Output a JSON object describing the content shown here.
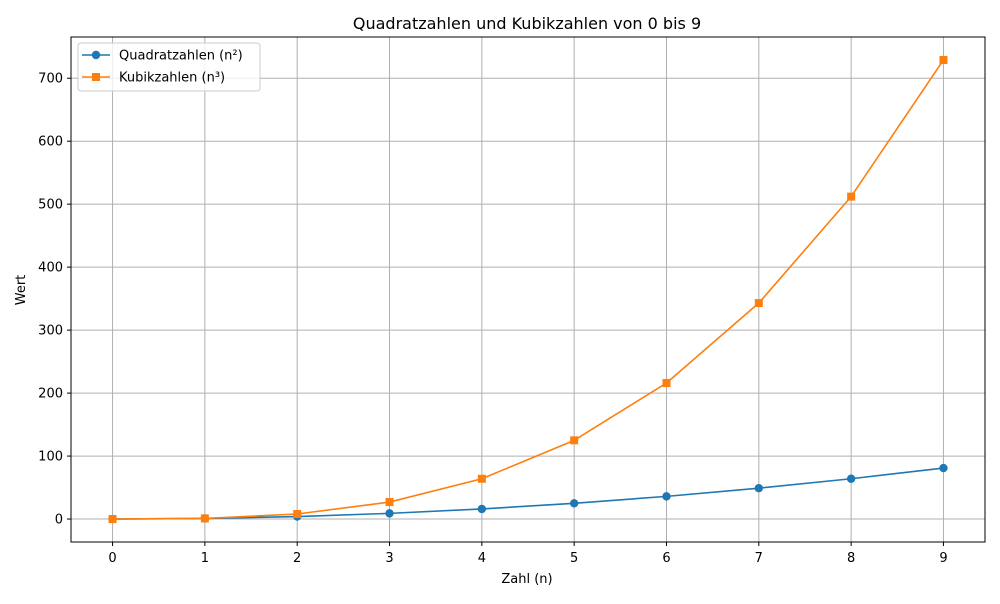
{
  "chart_data": {
    "type": "line",
    "title": "Quadratzahlen und Kubikzahlen von 0 bis 9",
    "xlabel": "Zahl (n)",
    "ylabel": "Wert",
    "x": [
      0,
      1,
      2,
      3,
      4,
      5,
      6,
      7,
      8,
      9
    ],
    "xlim": [
      -0.45,
      9.45
    ],
    "ylim": [
      -36.45,
      765.45
    ],
    "xticks": [
      0,
      1,
      2,
      3,
      4,
      5,
      6,
      7,
      8,
      9
    ],
    "yticks": [
      0,
      100,
      200,
      300,
      400,
      500,
      600,
      700
    ],
    "grid": true,
    "legend_position": "top-left",
    "series": [
      {
        "name": "Quadratzahlen (n²)",
        "values": [
          0,
          1,
          4,
          9,
          16,
          25,
          36,
          49,
          64,
          81
        ],
        "color": "#1f77b4",
        "marker": "circle"
      },
      {
        "name": "Kubikzahlen (n³)",
        "values": [
          0,
          1,
          8,
          27,
          64,
          125,
          216,
          343,
          512,
          729
        ],
        "color": "#ff7f0e",
        "marker": "square"
      }
    ]
  }
}
